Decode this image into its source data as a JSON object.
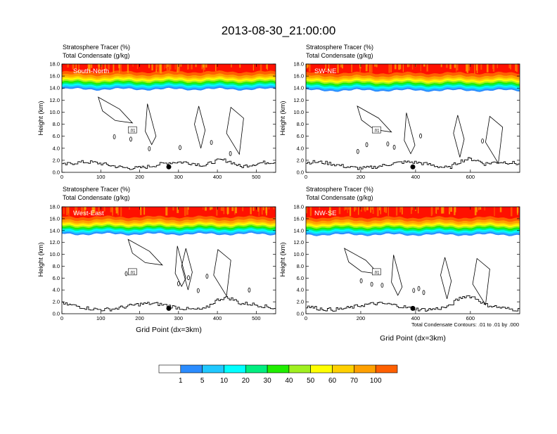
{
  "title": "2013-08-30_21:00:00",
  "header_line1": "Stratosphere Tracer   (%)",
  "header_line2": "Total Condensate   (g/kg)",
  "ylabel": "Height (km)",
  "xlabel": "Grid Point (dx=3km)",
  "footnote": "Total Condensate Contours: .01 to .01 by .000",
  "contour_label": ".01",
  "colors": [
    "#ffffff",
    "#2b8cff",
    "#20c8ff",
    "#00ffff",
    "#00ee80",
    "#20ee00",
    "#a0f020",
    "#ffff00",
    "#ffd000",
    "#ffa000",
    "#ff6000",
    "#ff1000"
  ],
  "colorbar_labels": [
    "1",
    "5",
    "10",
    "20",
    "30",
    "40",
    "50",
    "60",
    "70",
    "100"
  ],
  "chart_data": [
    {
      "type": "contour",
      "panel": "South-North",
      "xlim": [
        0,
        550
      ],
      "ylim": [
        0,
        18
      ],
      "xticks": [
        "0",
        "100",
        "200",
        "300",
        "400",
        "500"
      ],
      "yticks": [
        "0.0",
        "2.0",
        "4.0",
        "6.0",
        "8.0",
        "10.0",
        "12.0",
        "14.0",
        "16.0",
        "18.0"
      ],
      "tracer_base_km": 13.8,
      "marker_x": 275
    },
    {
      "type": "contour",
      "panel": "SW-NE",
      "xlim": [
        0,
        780
      ],
      "ylim": [
        0,
        18
      ],
      "xticks": [
        "0",
        "200",
        "400",
        "600"
      ],
      "yticks": [
        "0.0",
        "2.0",
        "4.0",
        "6.0",
        "8.0",
        "10.0",
        "12.0",
        "14.0",
        "16.0",
        "18.0"
      ],
      "tracer_base_km": 13.6,
      "marker_x": 390
    },
    {
      "type": "contour",
      "panel": "West-East",
      "xlim": [
        0,
        550
      ],
      "ylim": [
        0,
        18
      ],
      "xticks": [
        "0",
        "100",
        "200",
        "300",
        "400",
        "500"
      ],
      "yticks": [
        "0.0",
        "2.0",
        "4.0",
        "6.0",
        "8.0",
        "10.0",
        "12.0",
        "14.0",
        "16.0",
        "18.0"
      ],
      "tracer_base_km": 13.4,
      "marker_x": 275
    },
    {
      "type": "contour",
      "panel": "NW-SE",
      "xlim": [
        0,
        780
      ],
      "ylim": [
        0,
        18
      ],
      "xticks": [
        "0",
        "200",
        "400",
        "600"
      ],
      "yticks": [
        "0.0",
        "2.0",
        "4.0",
        "6.0",
        "8.0",
        "10.0",
        "12.0",
        "14.0",
        "16.0",
        "18.0"
      ],
      "tracer_base_km": 13.3,
      "marker_x": 390
    }
  ]
}
